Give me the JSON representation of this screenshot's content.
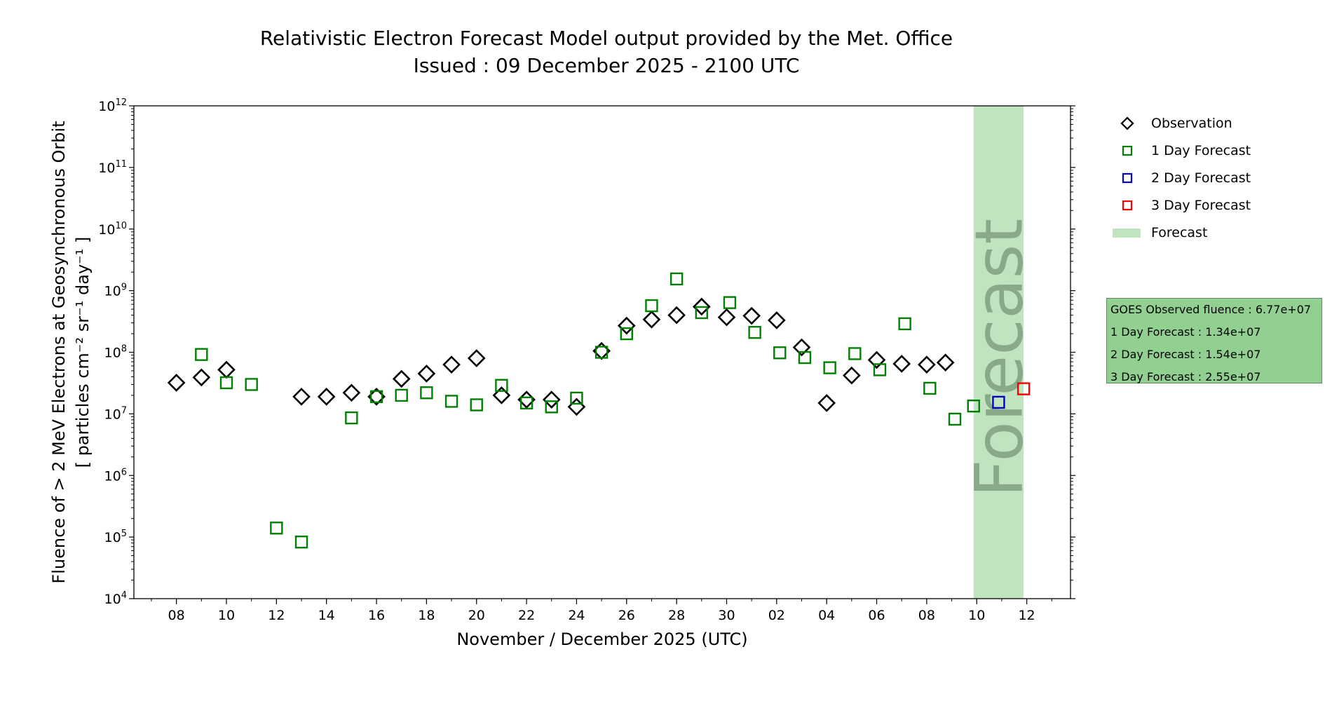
{
  "title": {
    "line1": "Relativistic Electron Forecast Model output provided by the Met. Office",
    "line2": "Issued : 09 December 2025 - 2100 UTC"
  },
  "legend": [
    {
      "label": "Observation",
      "marker": "diamond",
      "color": "#000000"
    },
    {
      "label": "1 Day Forecast",
      "marker": "square",
      "color": "#008000"
    },
    {
      "label": "2 Day Forecast",
      "marker": "square",
      "color": "#0000cc"
    },
    {
      "label": "3 Day Forecast",
      "marker": "square",
      "color": "#ff0000"
    },
    {
      "label": "Forecast",
      "marker": "band",
      "color": "#c0e4c0"
    }
  ],
  "info_box": [
    "GOES Observed fluence : 6.77e+07",
    "1 Day Forecast : 1.34e+07",
    "2 Day Forecast : 1.54e+07",
    "3 Day Forecast : 2.55e+07"
  ],
  "chart_data": {
    "type": "scatter",
    "title": "Relativistic Electron Forecast Model output provided by the Met. Office",
    "subtitle": "Issued : 09 December 2025 - 2100 UTC",
    "xlabel": "November / December 2025 (UTC)",
    "ylabel_line1": "Fluence of > 2 MeV Electrons at Geosynchronous Orbit",
    "ylabel_line2": "[ particles cm⁻² sr⁻¹ day⁻¹ ]",
    "y_scale": "log",
    "ylim": [
      10000,
      1000000000000
    ],
    "xlim": [
      "2025-11-06",
      "2025-12-13"
    ],
    "y_ticks": [
      {
        "value": 10000,
        "base": "10",
        "exp": "4"
      },
      {
        "value": 100000,
        "base": "10",
        "exp": "5"
      },
      {
        "value": 1000000,
        "base": "10",
        "exp": "6"
      },
      {
        "value": 10000000,
        "base": "10",
        "exp": "7"
      },
      {
        "value": 100000000,
        "base": "10",
        "exp": "8"
      },
      {
        "value": 1000000000,
        "base": "10",
        "exp": "9"
      },
      {
        "value": 10000000000,
        "base": "10",
        "exp": "10"
      },
      {
        "value": 100000000000,
        "base": "10",
        "exp": "11"
      },
      {
        "value": 1000000000000,
        "base": "10",
        "exp": "12"
      }
    ],
    "x_ticks": [
      {
        "date": "2025-11-08",
        "label": "08"
      },
      {
        "date": "2025-11-10",
        "label": "10"
      },
      {
        "date": "2025-11-12",
        "label": "12"
      },
      {
        "date": "2025-11-14",
        "label": "14"
      },
      {
        "date": "2025-11-16",
        "label": "16"
      },
      {
        "date": "2025-11-18",
        "label": "18"
      },
      {
        "date": "2025-11-20",
        "label": "20"
      },
      {
        "date": "2025-11-22",
        "label": "22"
      },
      {
        "date": "2025-11-24",
        "label": "24"
      },
      {
        "date": "2025-11-26",
        "label": "26"
      },
      {
        "date": "2025-11-28",
        "label": "28"
      },
      {
        "date": "2025-11-30",
        "label": "30"
      },
      {
        "date": "2025-12-02",
        "label": "02"
      },
      {
        "date": "2025-12-04",
        "label": "04"
      },
      {
        "date": "2025-12-06",
        "label": "06"
      },
      {
        "date": "2025-12-08",
        "label": "08"
      },
      {
        "date": "2025-12-10",
        "label": "10"
      },
      {
        "date": "2025-12-12",
        "label": "12"
      }
    ],
    "forecast_band": {
      "start": "2025-12-09 21:00",
      "end": "2025-12-11 21:00",
      "label": "Forecast",
      "color": "#c0e4c0"
    },
    "series": [
      {
        "name": "Observation",
        "marker": "diamond",
        "color": "#000000",
        "points": [
          {
            "x": "2025-11-08",
            "y": 32000000
          },
          {
            "x": "2025-11-09",
            "y": 39000000
          },
          {
            "x": "2025-11-10",
            "y": 52000000
          },
          {
            "x": "2025-11-13",
            "y": 19000000
          },
          {
            "x": "2025-11-14",
            "y": 19000000
          },
          {
            "x": "2025-11-15",
            "y": 22000000
          },
          {
            "x": "2025-11-16",
            "y": 19000000
          },
          {
            "x": "2025-11-17",
            "y": 37000000
          },
          {
            "x": "2025-11-18",
            "y": 45000000
          },
          {
            "x": "2025-11-19",
            "y": 63000000
          },
          {
            "x": "2025-11-20",
            "y": 80000000
          },
          {
            "x": "2025-11-21",
            "y": 20000000
          },
          {
            "x": "2025-11-22",
            "y": 17000000
          },
          {
            "x": "2025-11-23",
            "y": 17000000
          },
          {
            "x": "2025-11-24",
            "y": 13000000
          },
          {
            "x": "2025-11-25",
            "y": 105000000
          },
          {
            "x": "2025-11-26",
            "y": 270000000
          },
          {
            "x": "2025-11-27",
            "y": 340000000
          },
          {
            "x": "2025-11-28",
            "y": 400000000
          },
          {
            "x": "2025-11-29",
            "y": 550000000
          },
          {
            "x": "2025-11-30",
            "y": 370000000
          },
          {
            "x": "2025-12-01",
            "y": 390000000
          },
          {
            "x": "2025-12-02",
            "y": 330000000
          },
          {
            "x": "2025-12-03",
            "y": 120000000
          },
          {
            "x": "2025-12-04",
            "y": 15000000
          },
          {
            "x": "2025-12-05",
            "y": 42000000
          },
          {
            "x": "2025-12-06",
            "y": 75000000
          },
          {
            "x": "2025-12-07",
            "y": 65000000
          },
          {
            "x": "2025-12-08",
            "y": 63000000
          },
          {
            "x": "2025-12-08 18:00",
            "y": 68000000
          }
        ]
      },
      {
        "name": "1 Day Forecast",
        "marker": "square",
        "color": "#008000",
        "points": [
          {
            "x": "2025-11-09",
            "y": 92000000
          },
          {
            "x": "2025-11-10",
            "y": 32000000
          },
          {
            "x": "2025-11-11",
            "y": 30000000
          },
          {
            "x": "2025-11-12",
            "y": 140000
          },
          {
            "x": "2025-11-13",
            "y": 83000
          },
          {
            "x": "2025-11-15",
            "y": 8600000
          },
          {
            "x": "2025-11-16",
            "y": 19000000
          },
          {
            "x": "2025-11-17",
            "y": 20000000
          },
          {
            "x": "2025-11-18",
            "y": 22000000
          },
          {
            "x": "2025-11-19",
            "y": 16000000
          },
          {
            "x": "2025-11-20",
            "y": 14000000
          },
          {
            "x": "2025-11-21",
            "y": 29000000
          },
          {
            "x": "2025-11-22",
            "y": 15000000
          },
          {
            "x": "2025-11-23",
            "y": 13000000
          },
          {
            "x": "2025-11-24",
            "y": 18000000
          },
          {
            "x": "2025-11-25",
            "y": 100000000
          },
          {
            "x": "2025-11-26",
            "y": 200000000
          },
          {
            "x": "2025-11-27",
            "y": 570000000
          },
          {
            "x": "2025-11-28",
            "y": 1550000000
          },
          {
            "x": "2025-11-29",
            "y": 440000000
          },
          {
            "x": "2025-11-30 03:00",
            "y": 640000000
          },
          {
            "x": "2025-12-01 03:00",
            "y": 210000000
          },
          {
            "x": "2025-12-02 03:00",
            "y": 98000000
          },
          {
            "x": "2025-12-03 03:00",
            "y": 82000000
          },
          {
            "x": "2025-12-04 03:00",
            "y": 56000000
          },
          {
            "x": "2025-12-05 03:00",
            "y": 95000000
          },
          {
            "x": "2025-12-06 03:00",
            "y": 52000000
          },
          {
            "x": "2025-12-07 03:00",
            "y": 290000000
          },
          {
            "x": "2025-12-08 03:00",
            "y": 26000000
          },
          {
            "x": "2025-12-09 03:00",
            "y": 8200000
          },
          {
            "x": "2025-12-09 21:00",
            "y": 13400000
          }
        ]
      },
      {
        "name": "2 Day Forecast",
        "marker": "square",
        "color": "#0000cc",
        "points": [
          {
            "x": "2025-12-10 21:00",
            "y": 15400000
          }
        ]
      },
      {
        "name": "3 Day Forecast",
        "marker": "square",
        "color": "#ff0000",
        "points": [
          {
            "x": "2025-12-11 21:00",
            "y": 25500000
          }
        ]
      }
    ],
    "legend_position": "right",
    "grid": false
  }
}
